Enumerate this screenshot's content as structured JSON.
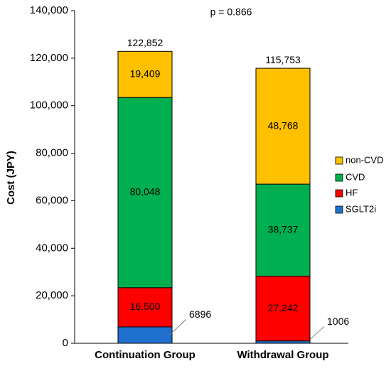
{
  "chart_data": {
    "type": "stacked_bar",
    "annotation": "p = 0.866",
    "y_label": "Cost (JPY)",
    "categories": [
      "Continuation Group",
      "Withdrawal Group"
    ],
    "series": [
      {
        "name": "SGLT2i",
        "color": "#1f6fce",
        "values": [
          6896,
          1006
        ]
      },
      {
        "name": "HF",
        "color": "#ff0000",
        "values": [
          16500,
          27242
        ],
        "value_labels": [
          "16,500",
          "27,242"
        ]
      },
      {
        "name": "CVD",
        "color": "#00b050",
        "values": [
          80048,
          38737
        ],
        "value_labels": [
          "80,048",
          "38,737"
        ]
      },
      {
        "name": "non-CVD",
        "color": "#ffc000",
        "values": [
          19409,
          48768
        ],
        "value_labels": [
          "19,409",
          "48,768"
        ]
      }
    ],
    "totals": [
      122852,
      115753
    ],
    "total_labels": [
      "122,852",
      "115,753"
    ],
    "ylim": [
      0,
      140000
    ],
    "yticks": [
      0,
      {
        "value": 20000,
        "label": "20,000"
      },
      {
        "value": 40000,
        "label": "40,000"
      },
      {
        "value": 60000,
        "label": "60,000"
      },
      {
        "value": 80000,
        "label": "80,000"
      },
      {
        "value": 100000,
        "label": "100,000"
      },
      {
        "value": 120000,
        "label": "120,000"
      },
      {
        "value": 140000,
        "label": "140,000"
      }
    ],
    "legend": "right"
  }
}
